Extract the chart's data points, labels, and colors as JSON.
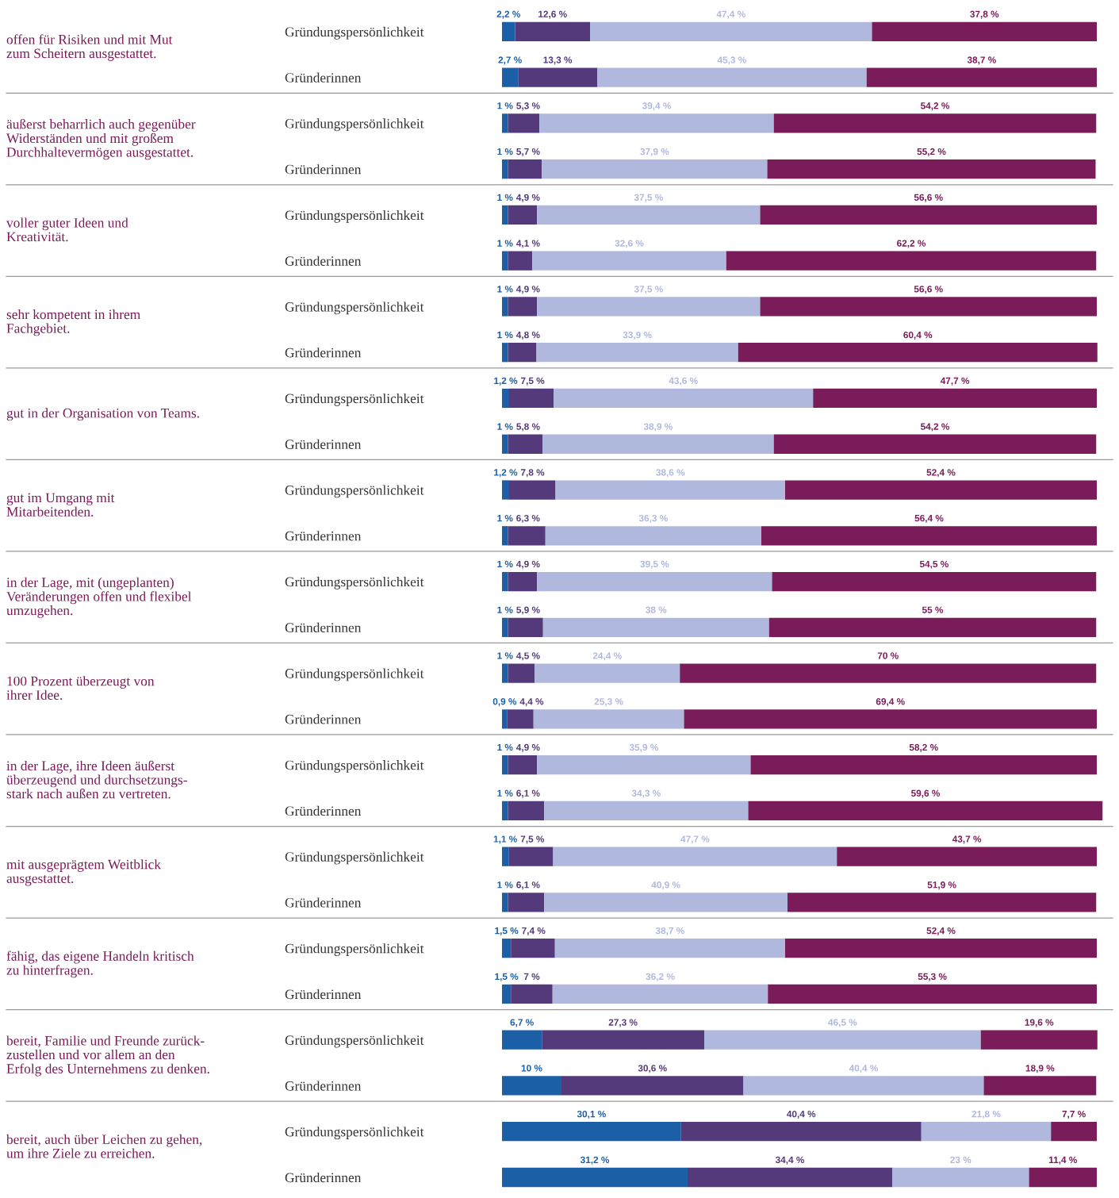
{
  "chart_data": {
    "type": "bar",
    "orientation": "horizontal",
    "stacked": true,
    "xlim": [
      0,
      101
    ],
    "grid": false,
    "tick_labels": "y",
    "categories": [
      "Gründungspersönlichkeit",
      "Gründerinnen",
      "Gründungspersönlichkeit",
      "Gründerinnen",
      "Gründungspersönlichkeit",
      "Gründerinnen",
      "Gründungspersönlichkeit",
      "Gründerinnen",
      "Gründungspersönlichkeit",
      "Gründerinnen",
      "Gründungspersönlichkeit",
      "Gründerinnen",
      "Gründungspersönlichkeit",
      "Gründerinnen",
      "Gründungspersönlichkeit",
      "Gründerinnen",
      "Gründungspersönlichkeit",
      "Gründerinnen",
      "Gründungspersönlichkeit",
      "Gründerinnen",
      "Gründungspersönlichkeit",
      "Gründerinnen",
      "Gründungspersönlichkeit",
      "Gründerinnen",
      "Gründungspersönlichkeit",
      "Gründerinnen"
    ],
    "series": [
      {
        "color": "#1b5fa6",
        "values": [
          2.2,
          2.7,
          1,
          1,
          1,
          1,
          1,
          1,
          1.2,
          1,
          1.2,
          1,
          1,
          1,
          1,
          0.9,
          1,
          1,
          1.1,
          1,
          1.5,
          1.5,
          6.7,
          10,
          30.1,
          31.2
        ],
        "value_labels": [
          "2,2 %",
          "2,7 %",
          "1 %",
          "1 %",
          "1 %",
          "1 %",
          "1 %",
          "1 %",
          "1,2 %",
          "1 %",
          "1,2 %",
          "1 %",
          "1 %",
          "1 %",
          "1 %",
          "0,9 %",
          "1 %",
          "1 %",
          "1,1 %",
          "1 %",
          "1,5 %",
          "1,5 %",
          "6,7 %",
          "10 %",
          "30,1 %",
          "31,2 %"
        ]
      },
      {
        "color": "#553a7b",
        "values": [
          12.6,
          13.3,
          5.3,
          5.7,
          4.9,
          4.1,
          4.9,
          4.8,
          7.5,
          5.8,
          7.8,
          6.3,
          4.9,
          5.9,
          4.5,
          4.4,
          4.9,
          6.1,
          7.5,
          6.1,
          7.4,
          7,
          27.3,
          30.6,
          40.4,
          34.4
        ],
        "value_labels": [
          "12,6 %",
          "13,3 %",
          "5,3 %",
          "5,7 %",
          "4,9 %",
          "4,1 %",
          "4,9 %",
          "4,8 %",
          "7,5 %",
          "5,8 %",
          "7,8 %",
          "6,3 %",
          "4,9 %",
          "5,9 %",
          "4,5 %",
          "4,4 %",
          "4,9 %",
          "6,1 %",
          "7,5 %",
          "6,1 %",
          "7,4 %",
          "7 %",
          "27,3 %",
          "30,6 %",
          "40,4 %",
          "34,4 %"
        ]
      },
      {
        "color": "#b0b8de",
        "values": [
          47.4,
          45.3,
          39.4,
          37.9,
          37.5,
          32.6,
          37.5,
          33.9,
          43.6,
          38.9,
          38.6,
          36.3,
          39.5,
          38,
          24.4,
          25.3,
          35.9,
          34.3,
          47.7,
          40.9,
          38.7,
          36.2,
          46.5,
          40.4,
          21.8,
          23
        ],
        "value_labels": [
          "47,4 %",
          "45,3 %",
          "39,4 %",
          "37,9 %",
          "37,5 %",
          "32,6 %",
          "37,5 %",
          "33,9 %",
          "43,6 %",
          "38,9 %",
          "38,6 %",
          "36,3 %",
          "39,5 %",
          "38 %",
          "24,4 %",
          "25,3 %",
          "35,9 %",
          "34,3 %",
          "47,7 %",
          "40,9 %",
          "38,7 %",
          "36,2 %",
          "46,5 %",
          "40,4 %",
          "21,8 %",
          "23 %"
        ]
      },
      {
        "color": "#7a1c5a",
        "values": [
          37.8,
          38.7,
          54.2,
          55.2,
          56.6,
          62.2,
          56.6,
          60.4,
          47.7,
          54.2,
          52.4,
          56.4,
          54.5,
          55,
          70,
          69.4,
          58.2,
          59.6,
          43.7,
          51.9,
          52.4,
          55.3,
          19.6,
          18.9,
          7.7,
          11.4
        ],
        "value_labels": [
          "37,8 %",
          "38,7 %",
          "54,2 %",
          "55,2 %",
          "56,6 %",
          "62,2 %",
          "56,6 %",
          "60,4 %",
          "47,7 %",
          "54,2 %",
          "52,4 %",
          "56,4 %",
          "54,5 %",
          "55 %",
          "70 %",
          "69,4 %",
          "58,2 %",
          "59,6 %",
          "43,7 %",
          "51,9 %",
          "52,4 %",
          "55,3 %",
          "19,6 %",
          "18,9 %",
          "7,7 %",
          "11,4 %"
        ]
      }
    ],
    "annotations": [
      "offen für Risiken und mit Mut\nzum Scheitern ausgestattet.",
      "äußerst beharrlich auch gegenüber\nWiderständen und mit großem\nDurchhaltevermögen ausgestattet.",
      "voller guter Ideen und\nKreativität.",
      "sehr kompetent in ihrem\nFachgebiet.",
      "gut in der Organisation von Teams.",
      "gut im Umgang mit\nMitarbeitenden.",
      "in der Lage, mit (ungeplanten)\nVeränderungen offen und flexibel\numzugehen.",
      "100 Prozent überzeugt von\nihrer Idee.",
      "in der Lage, ihre Ideen äußerst\nüberzeugend und durchsetzungs-\nstark nach außen zu vertreten.",
      "mit ausgeprägtem Weitblick\nausgestattet.",
      "fähig, das eigene Handeln kritisch\nzu hinterfragen.",
      "bereit, Familie und Freunde zurück-\nzustellen und vor allem an den\nErfolg des Unternehmens zu denken.",
      "bereit, auch über Leichen zu gehen,\num ihre Ziele zu erreichen."
    ]
  }
}
